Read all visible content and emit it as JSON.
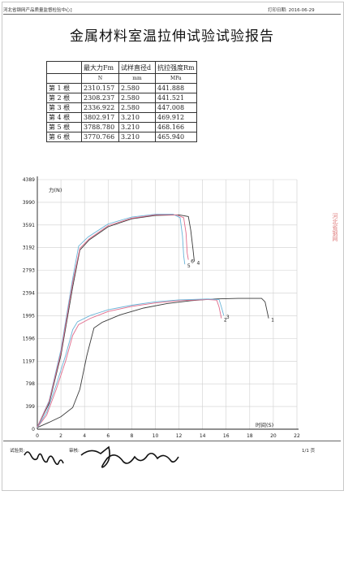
{
  "header": {
    "org": "河北省钢网产品质量监督检验中心]",
    "print_date": "打印日期: 2016-06-29"
  },
  "title": "金属材料室温拉伸试验试验报告",
  "table": {
    "columns": [
      "最大力Fm",
      "试样直径d",
      "抗拉强度Rm"
    ],
    "units": [
      "N",
      "mm",
      "MPa"
    ],
    "rows": [
      {
        "label": "第 1 根",
        "fm": "2310.157",
        "d": "2.580",
        "rm": "441.888"
      },
      {
        "label": "第 2 根",
        "fm": "2308.237",
        "d": "2.580",
        "rm": "441.521"
      },
      {
        "label": "第 3 根",
        "fm": "2336.922",
        "d": "2.580",
        "rm": "447.008"
      },
      {
        "label": "第 4 根",
        "fm": "3802.917",
        "d": "3.210",
        "rm": "469.912"
      },
      {
        "label": "第 5 根",
        "fm": "3788.780",
        "d": "3.210",
        "rm": "468.166"
      },
      {
        "label": "第 6 根",
        "fm": "3770.766",
        "d": "3.210",
        "rm": "465.940"
      }
    ]
  },
  "chart_data": {
    "type": "line",
    "title": "",
    "ylabel": "力(N)",
    "xlabel": "时间(S)",
    "ylim": [
      0,
      4389
    ],
    "xlim": [
      0,
      22
    ],
    "yticks": [
      "0",
      "399",
      "798",
      "1197",
      "1596",
      "1995",
      "2394",
      "2793",
      "3192",
      "3591",
      "3990",
      "4389"
    ],
    "xticks": [
      "0",
      "2",
      "4",
      "6",
      "8",
      "10",
      "12",
      "14",
      "16",
      "18",
      "20",
      "22"
    ],
    "grid": true,
    "series": [
      {
        "name": "1",
        "color": "#3a3a3a",
        "points": [
          [
            0,
            30
          ],
          [
            1,
            120
          ],
          [
            2,
            220
          ],
          [
            3,
            380
          ],
          [
            3.6,
            700
          ],
          [
            4.2,
            1300
          ],
          [
            4.8,
            1780
          ],
          [
            5.5,
            1880
          ],
          [
            7,
            2010
          ],
          [
            9,
            2130
          ],
          [
            11,
            2210
          ],
          [
            13,
            2260
          ],
          [
            15,
            2290
          ],
          [
            17,
            2300
          ],
          [
            19,
            2300
          ],
          [
            19.3,
            2240
          ],
          [
            19.6,
            1950
          ]
        ]
      },
      {
        "name": "2",
        "color": "#e06b8b",
        "points": [
          [
            0,
            30
          ],
          [
            0.8,
            250
          ],
          [
            1.6,
            700
          ],
          [
            2.4,
            1200
          ],
          [
            3,
            1650
          ],
          [
            3.5,
            1840
          ],
          [
            4.5,
            1950
          ],
          [
            6,
            2070
          ],
          [
            8,
            2160
          ],
          [
            10,
            2220
          ],
          [
            12,
            2260
          ],
          [
            14.5,
            2280
          ],
          [
            15.2,
            2270
          ],
          [
            15.4,
            2150
          ],
          [
            15.6,
            1950
          ]
        ]
      },
      {
        "name": "3",
        "color": "#6ab4d8",
        "points": [
          [
            0,
            30
          ],
          [
            0.8,
            300
          ],
          [
            1.6,
            780
          ],
          [
            2.4,
            1300
          ],
          [
            3,
            1750
          ],
          [
            3.4,
            1890
          ],
          [
            4.5,
            2000
          ],
          [
            6,
            2100
          ],
          [
            8,
            2180
          ],
          [
            10,
            2240
          ],
          [
            12,
            2275
          ],
          [
            14.5,
            2290
          ],
          [
            15.4,
            2280
          ],
          [
            15.6,
            2150
          ],
          [
            15.8,
            2000
          ]
        ]
      },
      {
        "name": "4",
        "color": "#3a3a3a",
        "points": [
          [
            0,
            40
          ],
          [
            1,
            450
          ],
          [
            2,
            1300
          ],
          [
            3,
            2500
          ],
          [
            3.6,
            3150
          ],
          [
            4.4,
            3330
          ],
          [
            6,
            3560
          ],
          [
            8,
            3700
          ],
          [
            10,
            3760
          ],
          [
            12,
            3770
          ],
          [
            12.8,
            3740
          ],
          [
            13,
            3500
          ],
          [
            13.2,
            3150
          ],
          [
            13.3,
            2950
          ]
        ]
      },
      {
        "name": "5",
        "color": "#6ab4d8",
        "points": [
          [
            0,
            40
          ],
          [
            1,
            500
          ],
          [
            2,
            1400
          ],
          [
            3,
            2650
          ],
          [
            3.5,
            3220
          ],
          [
            4.3,
            3380
          ],
          [
            6,
            3610
          ],
          [
            8,
            3730
          ],
          [
            10,
            3780
          ],
          [
            11.5,
            3780
          ],
          [
            12.1,
            3720
          ],
          [
            12.3,
            3400
          ],
          [
            12.4,
            3050
          ],
          [
            12.5,
            2900
          ]
        ]
      },
      {
        "name": "6",
        "color": "#e06b8b",
        "points": [
          [
            0,
            40
          ],
          [
            1,
            480
          ],
          [
            2,
            1350
          ],
          [
            3,
            2580
          ],
          [
            3.6,
            3180
          ],
          [
            4.4,
            3350
          ],
          [
            6,
            3580
          ],
          [
            8,
            3710
          ],
          [
            10,
            3770
          ],
          [
            11.8,
            3770
          ],
          [
            12.4,
            3720
          ],
          [
            12.6,
            3450
          ],
          [
            12.7,
            3100
          ],
          [
            12.8,
            2980
          ]
        ]
      }
    ]
  },
  "footer": {
    "tester": "试验员:",
    "reviewer": "审核:",
    "page": "1/1 页"
  },
  "stamp": "河北省钢网"
}
